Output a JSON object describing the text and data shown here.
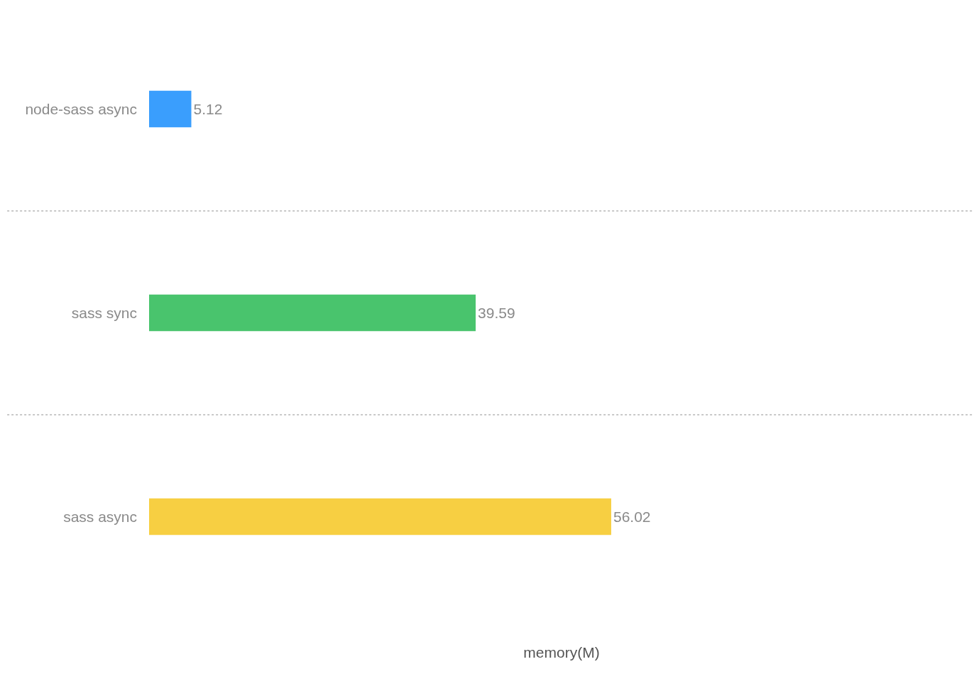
{
  "chart_data": {
    "type": "bar",
    "orientation": "horizontal",
    "xlabel": "memory(M)",
    "categories": [
      "node-sass async",
      "sass sync",
      "sass async"
    ],
    "values": [
      5.12,
      39.59,
      56.02
    ],
    "colors": [
      "#3a9efd",
      "#49c46d",
      "#f7cf42"
    ],
    "xlim": [
      0,
      100
    ],
    "tick_labels": "y",
    "grid": "y",
    "data_labels": true
  }
}
